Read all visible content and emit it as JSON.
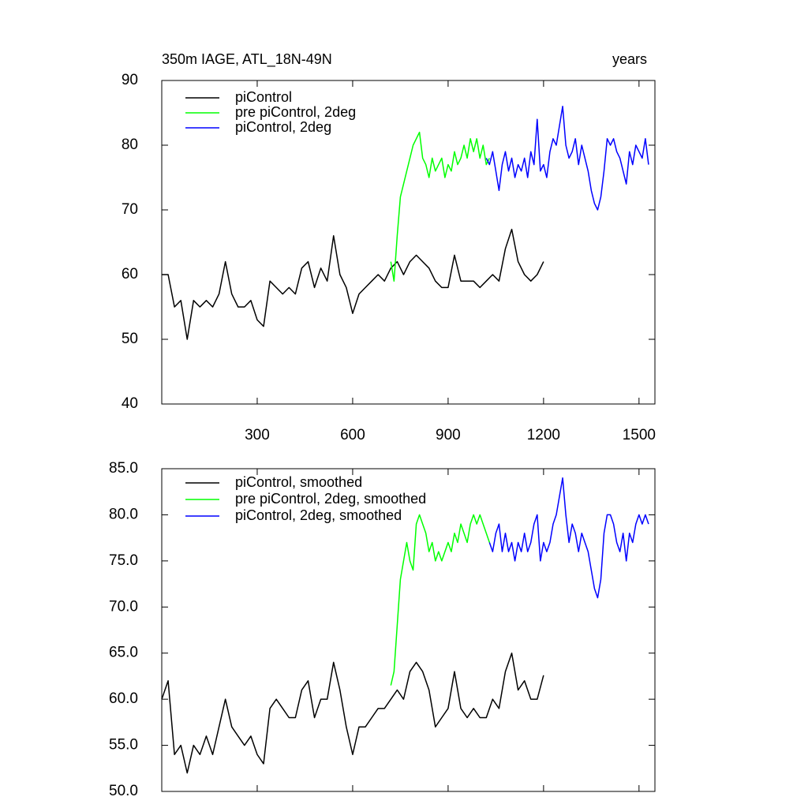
{
  "chart_data": [
    {
      "type": "line",
      "title": "350m IAGE, ATL_18N-49N",
      "right_title": "years",
      "xlim": [
        0,
        1550
      ],
      "ylim": [
        40,
        90
      ],
      "xticks": [
        300,
        600,
        900,
        1200,
        1500
      ],
      "yticks": [
        40,
        50,
        60,
        70,
        80,
        90
      ],
      "series": [
        {
          "name": "piControl",
          "color": "#000000",
          "x": [
            0,
            20,
            40,
            60,
            80,
            100,
            120,
            140,
            160,
            180,
            200,
            220,
            240,
            260,
            280,
            300,
            320,
            340,
            360,
            380,
            400,
            420,
            440,
            460,
            480,
            500,
            520,
            540,
            560,
            580,
            600,
            620,
            640,
            660,
            680,
            700,
            720,
            740,
            760,
            780,
            800,
            820,
            840,
            860,
            880,
            900,
            920,
            940,
            960,
            980,
            1000,
            1020,
            1040,
            1060,
            1080,
            1100,
            1120,
            1140,
            1160,
            1180,
            1200
          ],
          "values": [
            60,
            60,
            55,
            56,
            50,
            56,
            55,
            56,
            55,
            57,
            62,
            57,
            55,
            55,
            56,
            53,
            52,
            59,
            58,
            57,
            58,
            57,
            61,
            62,
            58,
            61,
            59,
            66,
            60,
            58,
            54,
            57,
            58,
            59,
            60,
            59,
            61,
            62,
            60,
            62,
            63,
            62,
            61,
            59,
            58,
            58,
            63,
            59,
            59,
            59,
            58,
            59,
            60,
            59,
            64,
            67,
            62,
            60,
            59,
            60,
            62
          ]
        },
        {
          "name": "pre piControl, 2deg",
          "color": "#00ff00",
          "x": [
            720,
            730,
            740,
            750,
            760,
            770,
            780,
            790,
            800,
            810,
            820,
            830,
            840,
            850,
            860,
            870,
            880,
            890,
            900,
            910,
            920,
            930,
            940,
            950,
            960,
            970,
            980,
            990,
            1000,
            1010,
            1020,
            1030
          ],
          "values": [
            62,
            59,
            66,
            72,
            74,
            76,
            78,
            80,
            81,
            82,
            78,
            77,
            75,
            78,
            76,
            77,
            78,
            75,
            77,
            76,
            79,
            77,
            78,
            80,
            78,
            81,
            79,
            81,
            78,
            80,
            77,
            78
          ]
        },
        {
          "name": "piControl, 2deg",
          "color": "#0000ff",
          "x": [
            1020,
            1030,
            1040,
            1050,
            1060,
            1070,
            1080,
            1090,
            1100,
            1110,
            1120,
            1130,
            1140,
            1150,
            1160,
            1170,
            1180,
            1190,
            1200,
            1210,
            1220,
            1230,
            1240,
            1250,
            1260,
            1270,
            1280,
            1290,
            1300,
            1310,
            1320,
            1330,
            1340,
            1350,
            1360,
            1370,
            1380,
            1390,
            1400,
            1410,
            1420,
            1430,
            1440,
            1450,
            1460,
            1470,
            1480,
            1490,
            1500,
            1510,
            1520,
            1530
          ],
          "values": [
            78,
            77,
            79,
            76,
            73,
            77,
            79,
            76,
            78,
            75,
            77,
            76,
            78,
            75,
            79,
            77,
            84,
            76,
            77,
            75,
            79,
            81,
            80,
            83,
            86,
            80,
            78,
            79,
            81,
            77,
            80,
            78,
            76,
            73,
            71,
            70,
            72,
            76,
            81,
            80,
            81,
            79,
            78,
            76,
            74,
            79,
            77,
            80,
            79,
            78,
            81,
            77
          ]
        }
      ]
    },
    {
      "type": "line",
      "xlim": [
        0,
        1550
      ],
      "ylim": [
        50,
        85
      ],
      "xticks": [
        300,
        600,
        900,
        1200,
        1500
      ],
      "yticks": [
        {
          "value": 50,
          "label": "50.0"
        },
        {
          "value": 55,
          "label": "55.0"
        },
        {
          "value": 60,
          "label": "60.0"
        },
        {
          "value": 65,
          "label": "65.0"
        },
        {
          "value": 70,
          "label": "70.0"
        },
        {
          "value": 75,
          "label": "75.0"
        },
        {
          "value": 80,
          "label": "80.0"
        },
        {
          "value": 85,
          "label": "85.0"
        }
      ],
      "series": [
        {
          "name": "piControl, smoothed",
          "color": "#000000",
          "x": [
            0,
            20,
            40,
            60,
            80,
            100,
            120,
            140,
            160,
            180,
            200,
            220,
            240,
            260,
            280,
            300,
            320,
            340,
            360,
            380,
            400,
            420,
            440,
            460,
            480,
            500,
            520,
            540,
            560,
            580,
            600,
            620,
            640,
            660,
            680,
            700,
            720,
            740,
            760,
            780,
            800,
            820,
            840,
            860,
            880,
            900,
            920,
            940,
            960,
            980,
            1000,
            1020,
            1040,
            1060,
            1080,
            1100,
            1120,
            1140,
            1160,
            1180,
            1200
          ],
          "values": [
            60,
            62,
            54,
            55,
            52,
            55,
            54,
            56,
            54,
            57,
            60,
            57,
            56,
            55,
            56,
            54,
            53,
            59,
            60,
            59,
            58,
            58,
            61,
            62,
            58,
            60,
            60,
            64,
            61,
            57,
            54,
            57,
            57,
            58,
            59,
            59,
            60,
            61,
            60,
            63,
            64,
            63,
            61,
            57,
            58,
            59,
            63,
            59,
            58,
            59,
            58,
            58,
            60,
            59,
            63,
            65,
            61,
            62,
            60,
            60,
            62.6
          ]
        },
        {
          "name": "pre piControl, 2deg, smoothed",
          "color": "#00ff00",
          "x": [
            720,
            730,
            740,
            750,
            760,
            770,
            780,
            790,
            800,
            810,
            820,
            830,
            840,
            850,
            860,
            870,
            880,
            890,
            900,
            910,
            920,
            930,
            940,
            950,
            960,
            970,
            980,
            990,
            1000,
            1010,
            1020,
            1030
          ],
          "values": [
            61.5,
            63,
            68,
            73,
            75,
            77,
            75,
            74,
            79,
            80,
            79,
            78,
            76,
            77,
            75,
            76,
            75,
            76,
            77,
            76,
            78,
            77,
            79,
            78,
            77,
            79,
            80,
            79,
            80,
            79,
            78,
            77
          ]
        },
        {
          "name": "piControl, 2deg, smoothed",
          "color": "#0000ff",
          "x": [
            1030,
            1040,
            1050,
            1060,
            1070,
            1080,
            1090,
            1100,
            1110,
            1120,
            1130,
            1140,
            1150,
            1160,
            1170,
            1180,
            1190,
            1200,
            1210,
            1220,
            1230,
            1240,
            1250,
            1260,
            1270,
            1280,
            1290,
            1300,
            1310,
            1320,
            1330,
            1340,
            1350,
            1360,
            1370,
            1380,
            1390,
            1400,
            1410,
            1420,
            1430,
            1440,
            1450,
            1460,
            1470,
            1480,
            1490,
            1500,
            1510,
            1520,
            1530
          ],
          "values": [
            77,
            76,
            78,
            79,
            76,
            78,
            76,
            77,
            75,
            77,
            76,
            78,
            76,
            77,
            79,
            80,
            75,
            77,
            76,
            77,
            79,
            80,
            82,
            84,
            80,
            77,
            79,
            78,
            76,
            78,
            77,
            76,
            74,
            72,
            71,
            73,
            78,
            80,
            80,
            79,
            77,
            76,
            78,
            75,
            78,
            77,
            79,
            80,
            79,
            80,
            79
          ]
        }
      ]
    }
  ]
}
